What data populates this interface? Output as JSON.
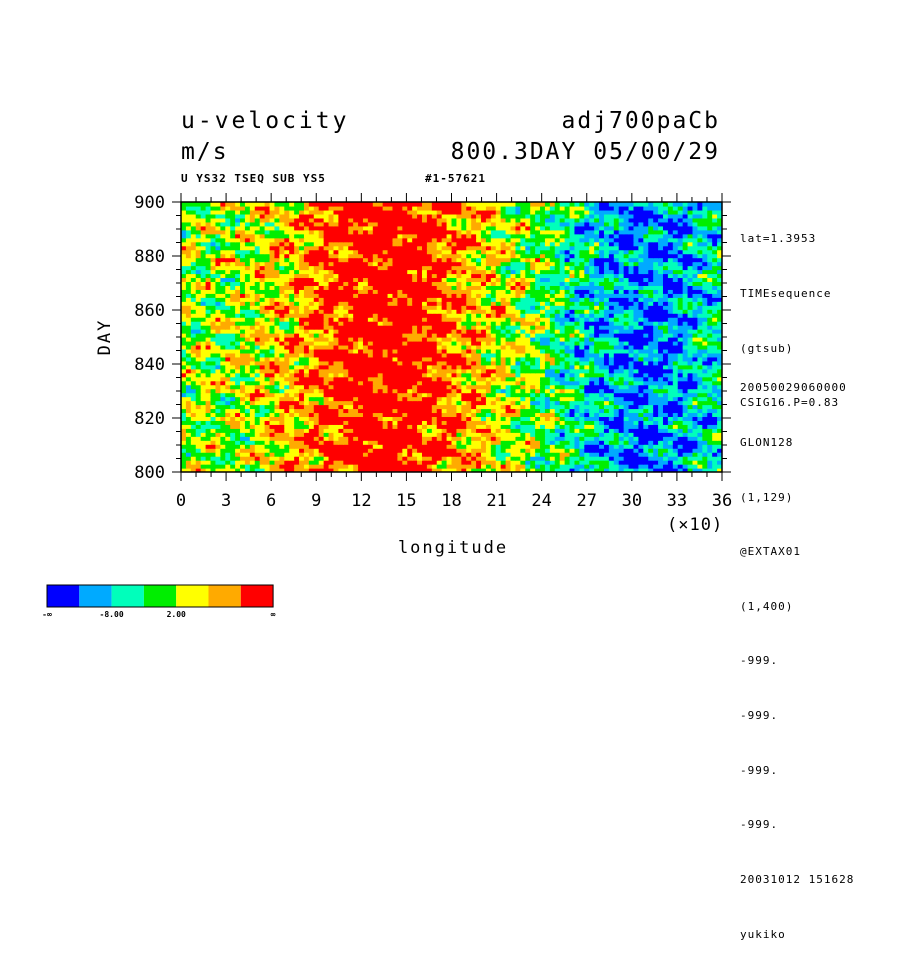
{
  "header": {
    "variable": "u-velocity",
    "units": "m/s",
    "dataset": "adj700paCb",
    "time_info": "800.3DAY 05/00/29",
    "subtitle_left": "U YS32 TSEQ SUB YS5",
    "subtitle_right": "#1-57621"
  },
  "side_info": {
    "top": [
      "lat=1.3953",
      "TIMEsequence",
      "(gtsub)",
      "CSIG16.P=0.83"
    ],
    "bottom": [
      "20050029060000",
      "GLON128",
      "(1,129)",
      "@EXTAX01",
      "(1,400)",
      "-999.",
      "-999.",
      "-999.",
      "-999.",
      "20031012 151628",
      "yukiko"
    ]
  },
  "colorbar": {
    "colors": [
      "#0000ff",
      "#00aaff",
      "#00ffbb",
      "#00ee00",
      "#ffff00",
      "#ffaa00",
      "#ff0000"
    ],
    "labels": [
      "-∞",
      "-8.00",
      "2.00",
      "∞"
    ]
  },
  "chart_data": {
    "type": "heatmap",
    "title": "u-velocity",
    "xlabel": "longitude",
    "ylabel": "DAY",
    "x_scale_note": "(×10)",
    "xlim": [
      0,
      36
    ],
    "ylim": [
      800,
      900
    ],
    "x_ticks": [
      0,
      3,
      6,
      9,
      12,
      15,
      18,
      21,
      24,
      27,
      30,
      33,
      36
    ],
    "y_ticks": [
      800,
      820,
      840,
      860,
      880,
      900
    ],
    "color_levels": [
      "-∞",
      "-8.00",
      "2.00",
      "∞"
    ],
    "pattern": [
      {
        "lon_range": [
          0,
          6
        ],
        "level": "cyan-green"
      },
      {
        "lon_range": [
          6,
          18
        ],
        "level": "yellow-red"
      },
      {
        "lon_range": [
          18,
          24
        ],
        "level": "green-yellow"
      },
      {
        "lon_range": [
          24,
          36
        ],
        "level": "blue-cyan"
      }
    ]
  }
}
